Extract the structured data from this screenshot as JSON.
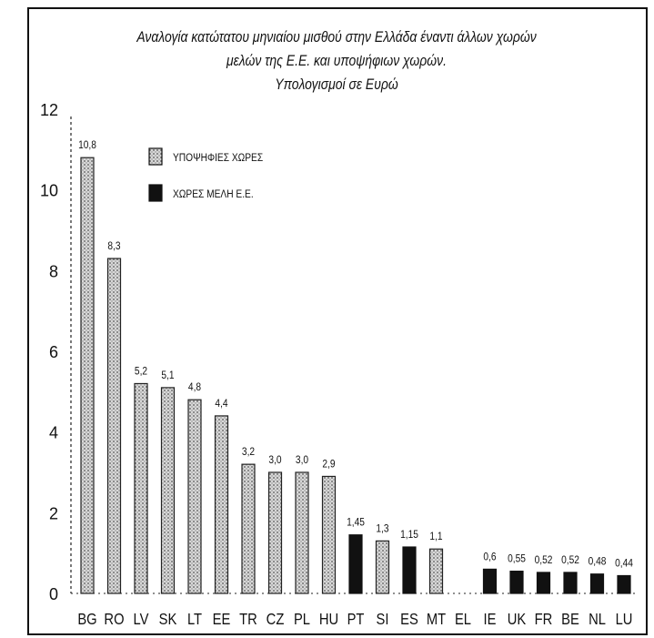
{
  "chart_data": {
    "type": "bar",
    "title_lines": [
      "Αναλογία κατώτατου μηνιαίου μισθού στην Ελλάδα έναντι άλλων χωρών",
      "μελών της Ε.Ε. και υποψήφιων χωρών.",
      "Υπολογισμοί σε Ευρώ"
    ],
    "xlabel": "",
    "ylabel": "",
    "ylim": [
      0,
      12
    ],
    "yticks": [
      "0",
      "2",
      "4",
      "6",
      "8",
      "10",
      "12"
    ],
    "grid": false,
    "legend_position": "top-left",
    "legend": [
      {
        "name": "ΥΠΟΨΗΦΙΕΣ ΧΩΡΕΣ",
        "pattern": "dotted"
      },
      {
        "name": "ΧΩΡΕΣ ΜΕΛΗ Ε.Ε.",
        "pattern": "solid"
      }
    ],
    "categories": [
      "BG",
      "RO",
      "LV",
      "SK",
      "LT",
      "EE",
      "TR",
      "CZ",
      "PL",
      "HU",
      "PT",
      "SI",
      "ES",
      "MT",
      "EL",
      "IE",
      "UK",
      "FR",
      "BE",
      "NL",
      "LU"
    ],
    "values": [
      10.8,
      8.3,
      5.2,
      5.1,
      4.8,
      4.4,
      3.2,
      3.0,
      3.0,
      2.9,
      1.45,
      1.3,
      1.15,
      1.1,
      null,
      0.6,
      0.55,
      0.52,
      0.52,
      0.48,
      0.44
    ],
    "value_labels": [
      "10,8",
      "8,3",
      "5,2",
      "5,1",
      "4,8",
      "4,4",
      "3,2",
      "3,0",
      "3,0",
      "2,9",
      "1,45",
      "1,3",
      "1,15",
      "1,1",
      "",
      "0,6",
      "0,55",
      "0,52",
      "0,52",
      "0,48",
      "0,44"
    ],
    "groups": [
      "candidate",
      "candidate",
      "candidate",
      "candidate",
      "candidate",
      "candidate",
      "candidate",
      "candidate",
      "candidate",
      "candidate",
      "member",
      "candidate",
      "member",
      "candidate",
      "member",
      "member",
      "member",
      "member",
      "member",
      "member",
      "member"
    ],
    "colors": {
      "candidate_fill": "#d6d6d6",
      "candidate_stroke": "#222222",
      "member_fill": "#111111"
    }
  }
}
